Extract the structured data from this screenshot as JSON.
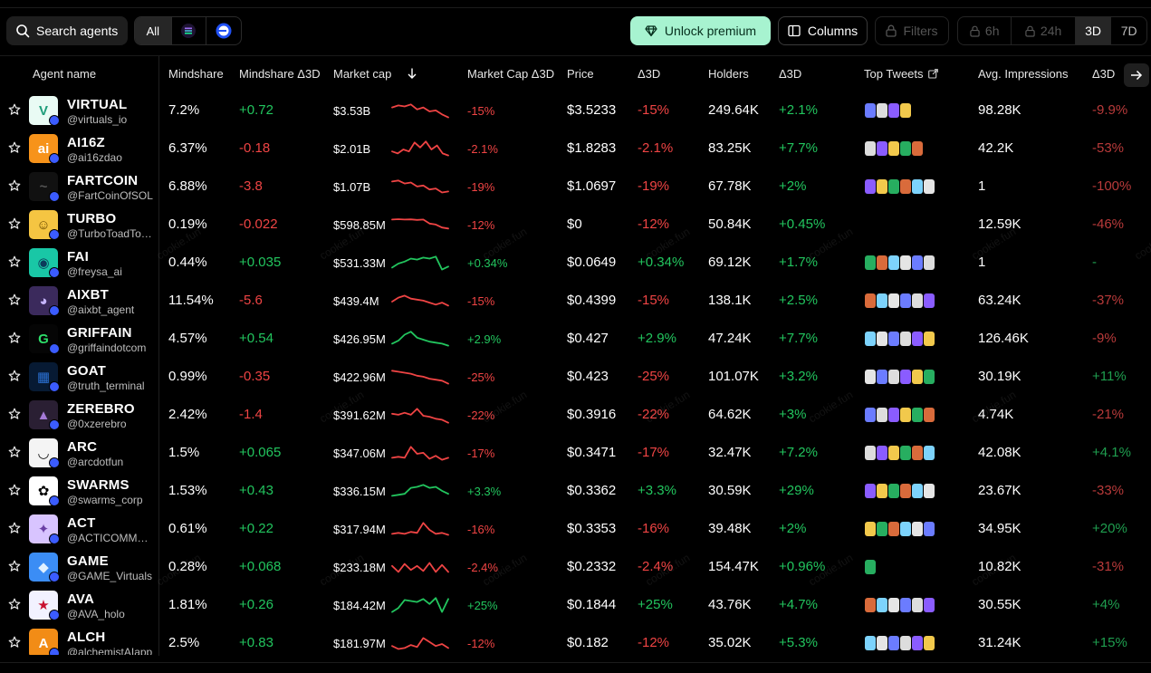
{
  "toolbar": {
    "search_label": "Search agents",
    "chain_all": "All",
    "premium_label": "Unlock premium",
    "columns_label": "Columns",
    "filters_label": "Filters",
    "time_6h": "6h",
    "time_24h": "24h",
    "time_3d": "3D",
    "time_7d": "7D",
    "selected_time": "3D"
  },
  "headers": {
    "agent_name": "Agent name",
    "mindshare": "Mindshare",
    "mindshare_delta": "Mindshare Δ3D",
    "market_cap": "Market cap",
    "market_cap_delta": "Market Cap Δ3D",
    "price": "Price",
    "price_delta": "Δ3D",
    "holders": "Holders",
    "holders_delta": "Δ3D",
    "top_tweets": "Top Tweets",
    "avg_impressions": "Avg. Impressions",
    "impressions_delta": "Δ3D"
  },
  "watermark_text": "cookie.fun",
  "colors": {
    "positive": "#22c55e",
    "negative": "#ef4444",
    "premium": "#a7f3d0"
  },
  "rows": [
    {
      "name": "VIRTUAL",
      "handle": "@virtuals_io",
      "mindshare": "7.2%",
      "mindshare_delta": "+0.72",
      "mcap": "$3.53B",
      "mcap_delta": "-15%",
      "price": "$3.5233",
      "price_delta": "-15%",
      "holders": "249.64K",
      "holders_delta": "+2.1%",
      "impressions": "98.28K",
      "impressions_delta": "-9.9%",
      "trend": [
        0.7,
        0.8,
        0.75,
        0.85,
        0.6,
        0.7,
        0.5,
        0.55,
        0.35,
        0.2
      ],
      "tweets": 4
    },
    {
      "name": "AI16Z",
      "handle": "@ai16zdao",
      "mindshare": "6.37%",
      "mindshare_delta": "-0.18",
      "mcap": "$2.01B",
      "mcap_delta": "-2.1%",
      "price": "$1.8283",
      "price_delta": "-2.1%",
      "holders": "83.25K",
      "holders_delta": "+7.7%",
      "impressions": "42.2K",
      "impressions_delta": "-53%",
      "trend": [
        0.4,
        0.3,
        0.5,
        0.4,
        0.85,
        0.6,
        0.9,
        0.5,
        0.7,
        0.3,
        0.2
      ],
      "tweets": 5
    },
    {
      "name": "FARTCOIN",
      "handle": "@FartCoinOfSOL",
      "mindshare": "6.88%",
      "mindshare_delta": "-3.8",
      "mcap": "$1.07B",
      "mcap_delta": "-19%",
      "price": "$1.0697",
      "price_delta": "-19%",
      "holders": "67.78K",
      "holders_delta": "+2%",
      "impressions": "1",
      "impressions_delta": "-100%",
      "trend": [
        0.8,
        0.85,
        0.7,
        0.75,
        0.55,
        0.6,
        0.4,
        0.45,
        0.25,
        0.3
      ],
      "tweets": 6
    },
    {
      "name": "TURBO",
      "handle": "@TurboToadToken",
      "mindshare": "0.19%",
      "mindshare_delta": "-0.022",
      "mcap": "$598.85M",
      "mcap_delta": "-12%",
      "price": "$0",
      "price_delta": "-12%",
      "holders": "50.84K",
      "holders_delta": "+0.45%",
      "impressions": "12.59K",
      "impressions_delta": "-46%",
      "trend": [
        0.8,
        0.82,
        0.8,
        0.81,
        0.78,
        0.8,
        0.6,
        0.55,
        0.4,
        0.35
      ],
      "tweets": 0
    },
    {
      "name": "FAI",
      "handle": "@freysa_ai",
      "mindshare": "0.44%",
      "mindshare_delta": "+0.035",
      "mcap": "$531.33M",
      "mcap_delta": "+0.34%",
      "price": "$0.0649",
      "price_delta": "+0.34%",
      "holders": "69.12K",
      "holders_delta": "+1.7%",
      "impressions": "1",
      "impressions_delta": "-",
      "trend": [
        0.3,
        0.5,
        0.6,
        0.75,
        0.7,
        0.8,
        0.75,
        0.85,
        0.2,
        0.35
      ],
      "tweets": 6
    },
    {
      "name": "AIXBT",
      "handle": "@aixbt_agent",
      "mindshare": "11.54%",
      "mindshare_delta": "-5.6",
      "mcap": "$439.4M",
      "mcap_delta": "-15%",
      "price": "$0.4399",
      "price_delta": "-15%",
      "holders": "138.1K",
      "holders_delta": "+2.5%",
      "impressions": "63.24K",
      "impressions_delta": "-37%",
      "trend": [
        0.5,
        0.7,
        0.8,
        0.65,
        0.6,
        0.55,
        0.45,
        0.35,
        0.45,
        0.3
      ],
      "tweets": 6
    },
    {
      "name": "GRIFFAIN",
      "handle": "@griffaindotcom",
      "mindshare": "4.57%",
      "mindshare_delta": "+0.54",
      "mcap": "$426.95M",
      "mcap_delta": "+2.9%",
      "price": "$0.427",
      "price_delta": "+2.9%",
      "holders": "47.24K",
      "holders_delta": "+7.7%",
      "impressions": "126.46K",
      "impressions_delta": "-9%",
      "trend": [
        0.3,
        0.45,
        0.75,
        0.9,
        0.6,
        0.5,
        0.4,
        0.35,
        0.3,
        0.2
      ],
      "tweets": 6
    },
    {
      "name": "GOAT",
      "handle": "@truth_terminal",
      "mindshare": "0.99%",
      "mindshare_delta": "-0.35",
      "mcap": "$422.96M",
      "mcap_delta": "-25%",
      "price": "$0.423",
      "price_delta": "-25%",
      "holders": "101.07K",
      "holders_delta": "+3.2%",
      "impressions": "30.19K",
      "impressions_delta": "+11%",
      "trend": [
        0.85,
        0.8,
        0.75,
        0.7,
        0.6,
        0.55,
        0.45,
        0.4,
        0.35,
        0.2
      ],
      "tweets": 6
    },
    {
      "name": "ZEREBRO",
      "handle": "@0xzerebro",
      "mindshare": "2.42%",
      "mindshare_delta": "-1.4",
      "mcap": "$391.62M",
      "mcap_delta": "-22%",
      "price": "$0.3916",
      "price_delta": "-22%",
      "holders": "64.62K",
      "holders_delta": "+3%",
      "impressions": "4.74K",
      "impressions_delta": "-21%",
      "trend": [
        0.6,
        0.55,
        0.65,
        0.55,
        0.85,
        0.5,
        0.45,
        0.35,
        0.3,
        0.15
      ],
      "tweets": 6
    },
    {
      "name": "ARC",
      "handle": "@arcdotfun",
      "mindshare": "1.5%",
      "mindshare_delta": "+0.065",
      "mcap": "$347.06M",
      "mcap_delta": "-17%",
      "price": "$0.3471",
      "price_delta": "-17%",
      "holders": "32.47K",
      "holders_delta": "+7.2%",
      "impressions": "42.08K",
      "impressions_delta": "+4.1%",
      "trend": [
        0.3,
        0.35,
        0.3,
        0.85,
        0.5,
        0.55,
        0.25,
        0.4,
        0.2,
        0.3
      ],
      "tweets": 6
    },
    {
      "name": "SWARMS",
      "handle": "@swarms_corp",
      "mindshare": "1.53%",
      "mindshare_delta": "+0.43",
      "mcap": "$336.15M",
      "mcap_delta": "+3.3%",
      "price": "$0.3362",
      "price_delta": "+3.3%",
      "holders": "30.59K",
      "holders_delta": "+29%",
      "impressions": "23.67K",
      "impressions_delta": "-33%",
      "trend": [
        0.3,
        0.35,
        0.4,
        0.7,
        0.75,
        0.85,
        0.7,
        0.75,
        0.55,
        0.4
      ],
      "tweets": 6
    },
    {
      "name": "ACT",
      "handle": "@ACTICOMMUNITY",
      "mindshare": "0.61%",
      "mindshare_delta": "+0.22",
      "mcap": "$317.94M",
      "mcap_delta": "-16%",
      "price": "$0.3353",
      "price_delta": "-16%",
      "holders": "39.48K",
      "holders_delta": "+2%",
      "impressions": "34.95K",
      "impressions_delta": "+20%",
      "trend": [
        0.3,
        0.35,
        0.3,
        0.4,
        0.35,
        0.85,
        0.5,
        0.3,
        0.35,
        0.25
      ],
      "tweets": 6
    },
    {
      "name": "GAME",
      "handle": "@GAME_Virtuals",
      "mindshare": "0.28%",
      "mindshare_delta": "+0.068",
      "mcap": "$233.18M",
      "mcap_delta": "-2.4%",
      "price": "$0.2332",
      "price_delta": "-2.4%",
      "holders": "154.47K",
      "holders_delta": "+0.96%",
      "impressions": "10.82K",
      "impressions_delta": "-31%",
      "trend": [
        0.6,
        0.3,
        0.7,
        0.4,
        0.6,
        0.35,
        0.75,
        0.3,
        0.65,
        0.3
      ],
      "tweets": 1
    },
    {
      "name": "AVA",
      "handle": "@AVA_holo",
      "mindshare": "1.81%",
      "mindshare_delta": "+0.26",
      "mcap": "$184.42M",
      "mcap_delta": "+25%",
      "price": "$0.1844",
      "price_delta": "+25%",
      "holders": "43.76K",
      "holders_delta": "+4.7%",
      "impressions": "30.55K",
      "impressions_delta": "+4%",
      "trend": [
        0.2,
        0.4,
        0.8,
        0.75,
        0.7,
        0.85,
        0.6,
        0.9,
        0.2,
        0.85
      ],
      "tweets": 6
    },
    {
      "name": "ALCH",
      "handle": "@alchemistAIapp",
      "mindshare": "2.5%",
      "mindshare_delta": "+0.83",
      "mcap": "$181.97M",
      "mcap_delta": "-12%",
      "price": "$0.182",
      "price_delta": "-12%",
      "holders": "35.02K",
      "holders_delta": "+5.3%",
      "impressions": "31.24K",
      "impressions_delta": "+15%",
      "trend": [
        0.4,
        0.25,
        0.3,
        0.45,
        0.35,
        0.8,
        0.6,
        0.4,
        0.5,
        0.3
      ],
      "tweets": 6
    }
  ]
}
